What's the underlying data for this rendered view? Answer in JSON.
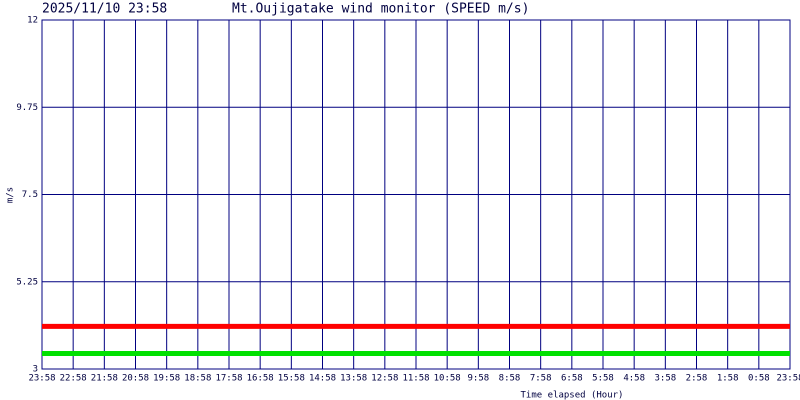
{
  "chart_data": {
    "type": "line",
    "date": "2025/11/10 23:58",
    "title": "Mt.Oujigatake wind monitor (SPEED m/s)",
    "y_label": "m/s",
    "x_label": "Time elapsed (Hour)",
    "categories": [
      "23:58",
      "22:58",
      "21:58",
      "20:58",
      "19:58",
      "18:58",
      "17:58",
      "16:58",
      "15:58",
      "14:58",
      "13:58",
      "12:58",
      "11:58",
      "10:58",
      "9:58",
      "8:58",
      "7:58",
      "6:58",
      "5:58",
      "4:58",
      "3:58",
      "2:58",
      "1:58",
      "0:58",
      "23:58"
    ],
    "series": [
      {
        "color": "#ff0000",
        "values": [
          4.1,
          4.1,
          4.1,
          4.1,
          4.1,
          4.1,
          4.1,
          4.1,
          4.1,
          4.1,
          4.1,
          4.1,
          4.1,
          4.1,
          4.1,
          4.1,
          4.1,
          4.1,
          4.1,
          4.1,
          4.1,
          4.1,
          4.1,
          4.1,
          4.1
        ]
      },
      {
        "color": "#00e000",
        "values": [
          3.4,
          3.4,
          3.4,
          3.4,
          3.4,
          3.4,
          3.4,
          3.4,
          3.4,
          3.4,
          3.4,
          3.4,
          3.4,
          3.4,
          3.4,
          3.4,
          3.4,
          3.4,
          3.4,
          3.4,
          3.4,
          3.4,
          3.4,
          3.4,
          3.4
        ]
      }
    ],
    "ylim": [
      3,
      12
    ],
    "yticks": [
      3,
      5.25,
      7.5,
      9.75,
      12
    ],
    "grid": true
  }
}
